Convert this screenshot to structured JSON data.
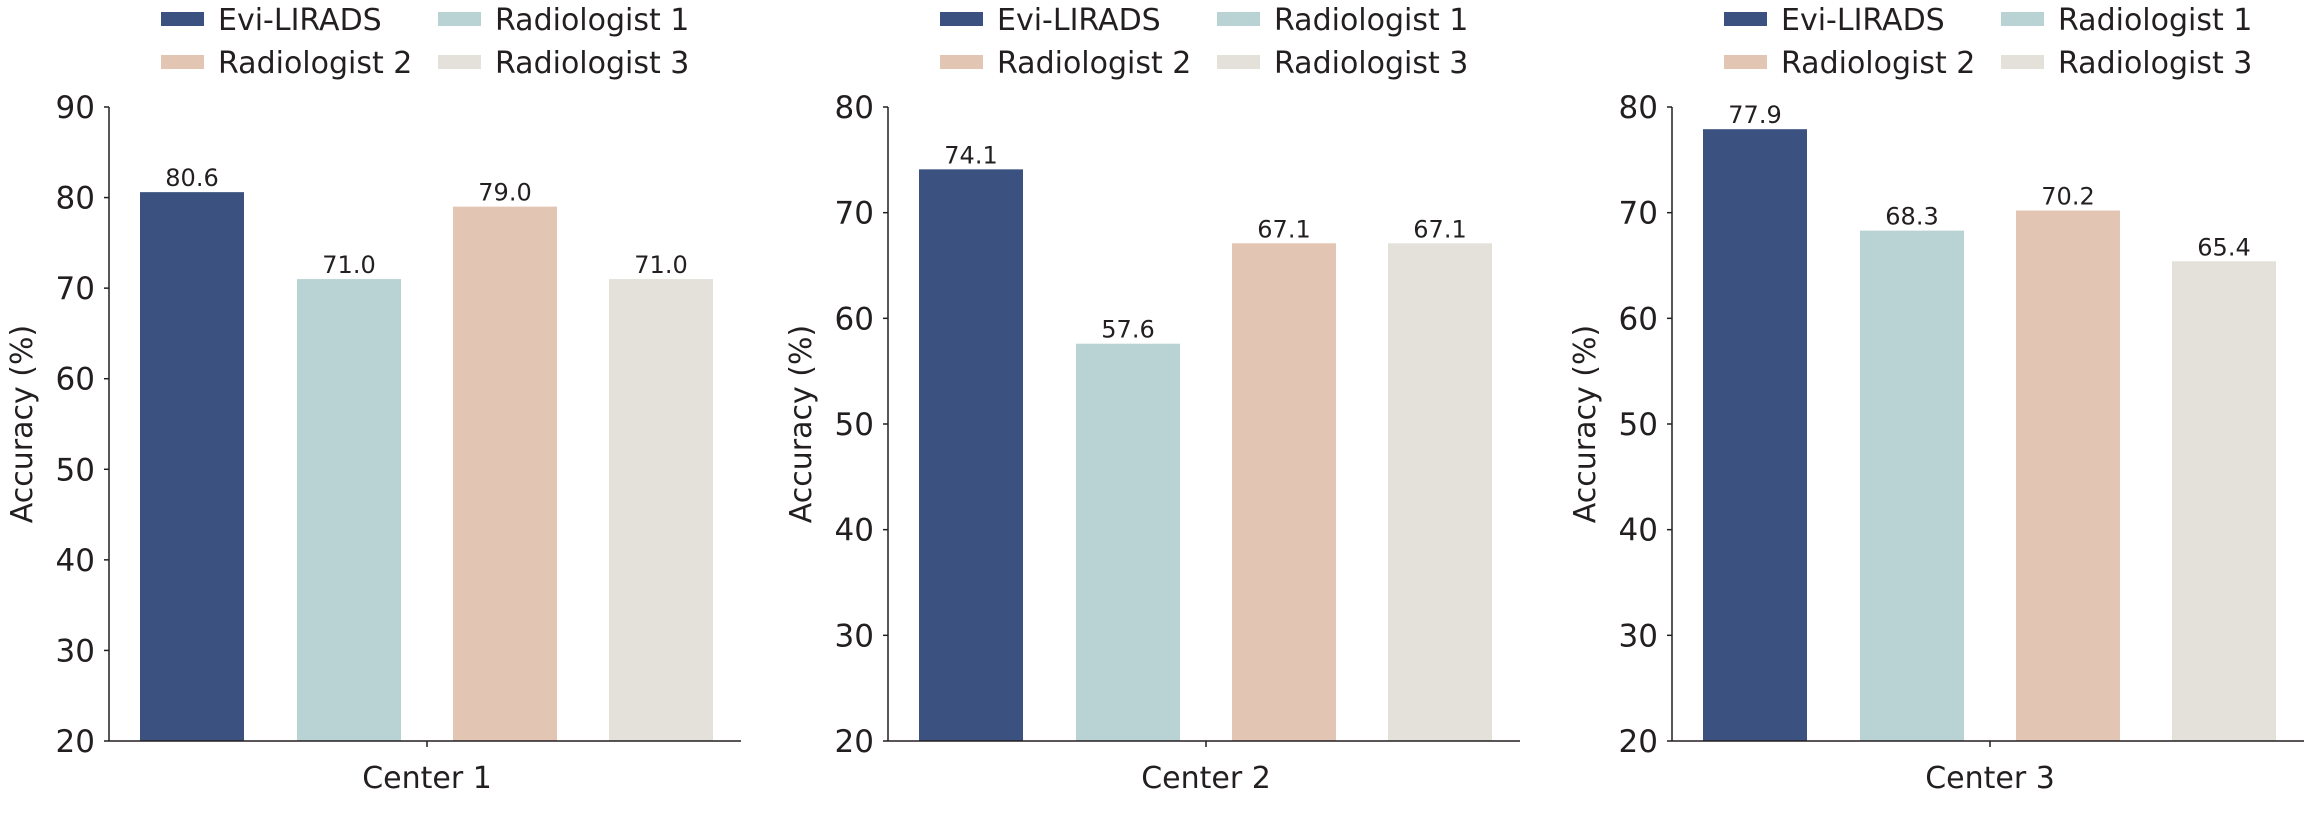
{
  "chart_data": [
    {
      "type": "bar",
      "xlabel": "Center 1",
      "ylabel": "Accuracy (%)",
      "ylim": [
        20,
        90
      ],
      "yticks": [
        20,
        30,
        40,
        50,
        60,
        70,
        80,
        90
      ],
      "legend": {
        "placement": "top",
        "entries": [
          "Evi-LIRADS",
          "Radiologist 1",
          "Radiologist 2",
          "Radiologist 3"
        ]
      },
      "series": [
        {
          "name": "Evi-LIRADS",
          "value": 80.6,
          "label": "80.6"
        },
        {
          "name": "Radiologist 1",
          "value": 71.0,
          "label": "71.0"
        },
        {
          "name": "Radiologist 2",
          "value": 79.0,
          "label": "79.0"
        },
        {
          "name": "Radiologist 3",
          "value": 71.0,
          "label": "71.0"
        }
      ]
    },
    {
      "type": "bar",
      "xlabel": "Center 2",
      "ylabel": "Accuracy (%)",
      "ylim": [
        20,
        80
      ],
      "yticks": [
        20,
        30,
        40,
        50,
        60,
        70,
        80
      ],
      "legend": {
        "placement": "top",
        "entries": [
          "Evi-LIRADS",
          "Radiologist 1",
          "Radiologist 2",
          "Radiologist 3"
        ]
      },
      "series": [
        {
          "name": "Evi-LIRADS",
          "value": 74.1,
          "label": "74.1"
        },
        {
          "name": "Radiologist 1",
          "value": 57.6,
          "label": "57.6"
        },
        {
          "name": "Radiologist 2",
          "value": 67.1,
          "label": "67.1"
        },
        {
          "name": "Radiologist 3",
          "value": 67.1,
          "label": "67.1"
        }
      ]
    },
    {
      "type": "bar",
      "xlabel": "Center 3",
      "ylabel": "Accuracy (%)",
      "ylim": [
        20,
        80
      ],
      "yticks": [
        20,
        30,
        40,
        50,
        60,
        70,
        80
      ],
      "legend": {
        "placement": "top",
        "entries": [
          "Evi-LIRADS",
          "Radiologist 1",
          "Radiologist 2",
          "Radiologist 3"
        ]
      },
      "series": [
        {
          "name": "Evi-LIRADS",
          "value": 77.9,
          "label": "77.9"
        },
        {
          "name": "Radiologist 1",
          "value": 68.3,
          "label": "68.3"
        },
        {
          "name": "Radiologist 2",
          "value": 70.2,
          "label": "70.2"
        },
        {
          "name": "Radiologist 3",
          "value": 65.4,
          "label": "65.4"
        }
      ]
    }
  ],
  "colors": {
    "Evi-LIRADS": "#3b5280",
    "Radiologist 1": "#b9d3d4",
    "Radiologist 2": "#e3c5b4",
    "Radiologist 3": "#e4e0da"
  }
}
